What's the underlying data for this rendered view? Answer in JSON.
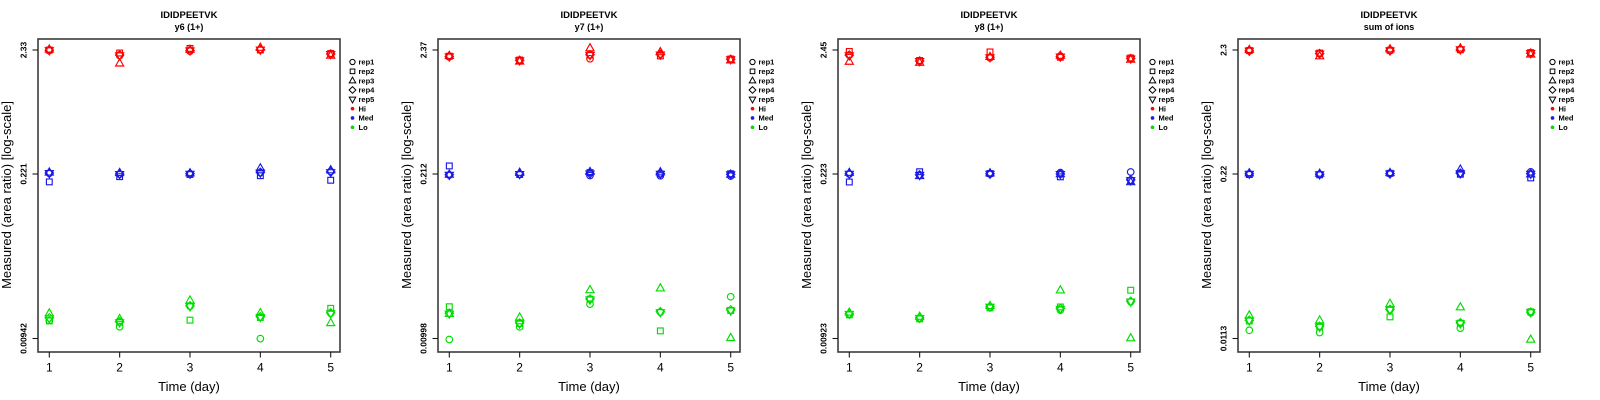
{
  "figure": {
    "ylabel": "Measured (area ratio) [log-scale]",
    "xlabel": "Time (day)",
    "x_tick_labels": [
      "1",
      "2",
      "3",
      "4",
      "5"
    ],
    "legend": {
      "reps": [
        {
          "label": "rep1",
          "marker": "circle"
        },
        {
          "label": "rep2",
          "marker": "square"
        },
        {
          "label": "rep3",
          "marker": "triangle-up"
        },
        {
          "label": "rep4",
          "marker": "diamond"
        },
        {
          "label": "rep5",
          "marker": "triangle-down"
        }
      ],
      "levels": [
        {
          "label": "Hi",
          "color": "#ff0000"
        },
        {
          "label": "Med",
          "color": "#1a1ae6"
        },
        {
          "label": "Lo",
          "color": "#00dd00"
        }
      ]
    }
  },
  "chart_data": [
    {
      "type": "scatter",
      "title": "IDIDPEETVK",
      "subtitle": "y6 (1+)",
      "xlabel": "Time (day)",
      "ylabel": "Measured (area ratio) [log-scale]",
      "y_scale": "log",
      "x": [
        1,
        2,
        3,
        4,
        5
      ],
      "y_ticks": [
        2.33,
        0.221,
        0.00942
      ],
      "y_tick_labels": [
        "2.33",
        "0.221",
        "0.00942"
      ],
      "rep_order": [
        "rep1",
        "rep2",
        "rep3",
        "rep4",
        "rep5"
      ],
      "series": [
        {
          "name": "Hi",
          "days": [
            [
              2.31,
              2.33,
              2.36,
              2.32,
              2.31
            ],
            [
              2.1,
              2.2,
              1.81,
              2.12,
              2.1
            ],
            [
              2.28,
              2.4,
              2.35,
              2.31,
              2.3
            ],
            [
              2.36,
              2.33,
              2.44,
              2.35,
              2.34
            ],
            [
              2.15,
              2.18,
              2.1,
              2.16,
              2.15
            ]
          ]
        },
        {
          "name": "Med",
          "days": [
            [
              0.224,
              0.19,
              0.228,
              0.225,
              0.224
            ],
            [
              0.22,
              0.21,
              0.226,
              0.221,
              0.22
            ],
            [
              0.222,
              0.219,
              0.225,
              0.222,
              0.221
            ],
            [
              0.227,
              0.214,
              0.247,
              0.228,
              0.226
            ],
            [
              0.232,
              0.196,
              0.238,
              0.23,
              0.228
            ]
          ]
        },
        {
          "name": "Lo",
          "days": [
            [
              0.0133,
              0.0132,
              0.0153,
              0.014,
              0.0138
            ],
            [
              0.0118,
              0.0129,
              0.0137,
              0.013,
              0.0128
            ],
            [
              0.0175,
              0.0134,
              0.0196,
              0.0176,
              0.0174
            ],
            [
              0.0094,
              0.0141,
              0.0154,
              0.0143,
              0.0142
            ],
            [
              0.0153,
              0.0168,
              0.0127,
              0.0154,
              0.0152
            ]
          ]
        }
      ]
    },
    {
      "type": "scatter",
      "title": "IDIDPEETVK",
      "subtitle": "y7 (1+)",
      "xlabel": "Time (day)",
      "ylabel": "Measured (area ratio) [log-scale]",
      "y_scale": "log",
      "x": [
        1,
        2,
        3,
        4,
        5
      ],
      "y_ticks": [
        2.37,
        0.212,
        0.00998
      ],
      "y_tick_labels": [
        "2.37",
        "0.212",
        "0.00998"
      ],
      "rep_order": [
        "rep1",
        "rep2",
        "rep3",
        "rep4",
        "rep5"
      ],
      "series": [
        {
          "name": "Hi",
          "days": [
            [
              2.08,
              2.1,
              2.12,
              2.09,
              2.08
            ],
            [
              1.93,
              1.95,
              1.9,
              1.94,
              1.93
            ],
            [
              2.0,
              2.15,
              2.46,
              2.16,
              2.14
            ],
            [
              2.19,
              2.11,
              2.28,
              2.18,
              2.16
            ],
            [
              1.97,
              1.99,
              1.94,
              1.98,
              1.97
            ]
          ]
        },
        {
          "name": "Med",
          "days": [
            [
              0.208,
              0.248,
              0.21,
              0.209,
              0.208
            ],
            [
              0.211,
              0.21,
              0.218,
              0.212,
              0.211
            ],
            [
              0.206,
              0.218,
              0.221,
              0.214,
              0.213
            ],
            [
              0.205,
              0.212,
              0.22,
              0.213,
              0.212
            ],
            [
              0.204,
              0.213,
              0.21,
              0.211,
              0.21
            ]
          ]
        },
        {
          "name": "Lo",
          "days": [
            [
              0.0098,
              0.018,
              0.0158,
              0.016,
              0.0158
            ],
            [
              0.0124,
              0.0132,
              0.0148,
              0.0133,
              0.0131
            ],
            [
              0.0189,
              0.0207,
              0.0246,
              0.0208,
              0.0205
            ],
            [
              0.0163,
              0.0115,
              0.0254,
              0.0164,
              0.0162
            ],
            [
              0.0217,
              0.0168,
              0.0101,
              0.017,
              0.0167
            ]
          ]
        }
      ]
    },
    {
      "type": "scatter",
      "title": "IDIDPEETVK",
      "subtitle": "y8 (1+)",
      "xlabel": "Time (day)",
      "ylabel": "Measured (area ratio) [log-scale]",
      "y_scale": "log",
      "x": [
        1,
        2,
        3,
        4,
        5
      ],
      "y_ticks": [
        2.45,
        0.223,
        0.00923
      ],
      "y_tick_labels": [
        "2.45",
        "0.223",
        "0.00923"
      ],
      "rep_order": [
        "rep1",
        "rep2",
        "rep3",
        "rep4",
        "rep5"
      ],
      "series": [
        {
          "name": "Hi",
          "days": [
            [
              2.22,
              2.38,
              1.96,
              2.22,
              2.2
            ],
            [
              1.97,
              2.0,
              1.92,
              1.98,
              1.97
            ],
            [
              2.11,
              2.36,
              2.15,
              2.13,
              2.12
            ],
            [
              2.18,
              2.13,
              2.2,
              2.16,
              2.15
            ],
            [
              2.08,
              2.1,
              2.04,
              2.08,
              2.07
            ]
          ]
        },
        {
          "name": "Med",
          "days": [
            [
              0.223,
              0.191,
              0.229,
              0.224,
              0.223
            ],
            [
              0.218,
              0.233,
              0.215,
              0.219,
              0.218
            ],
            [
              0.223,
              0.225,
              0.227,
              0.224,
              0.223
            ],
            [
              0.229,
              0.211,
              0.223,
              0.223,
              0.222
            ],
            [
              0.232,
              0.196,
              0.191,
              0.199,
              0.197
            ]
          ]
        },
        {
          "name": "Lo",
          "days": [
            [
              0.0147,
              0.0146,
              0.0153,
              0.0149,
              0.0148
            ],
            [
              0.0136,
              0.0135,
              0.0141,
              0.0138,
              0.0137
            ],
            [
              0.017,
              0.0167,
              0.0174,
              0.0171,
              0.017
            ],
            [
              0.016,
              0.017,
              0.0235,
              0.0165,
              0.0163
            ],
            [
              0.0188,
              0.0235,
              0.0093,
              0.019,
              0.0188
            ]
          ]
        }
      ]
    },
    {
      "type": "scatter",
      "title": "IDIDPEETVK",
      "subtitle": "sum of ions",
      "xlabel": "Time (day)",
      "ylabel": "Measured (area ratio) [log-scale]",
      "y_scale": "log",
      "x": [
        1,
        2,
        3,
        4,
        5
      ],
      "y_ticks": [
        2.3,
        0.22,
        0.0113
      ],
      "y_tick_labels": [
        "2.3",
        "0.22",
        "0.0113"
      ],
      "rep_order": [
        "rep1",
        "rep2",
        "rep3",
        "rep4",
        "rep5"
      ],
      "series": [
        {
          "name": "Hi",
          "days": [
            [
              2.26,
              2.28,
              2.31,
              2.27,
              2.26
            ],
            [
              2.14,
              2.17,
              2.05,
              2.15,
              2.14
            ],
            [
              2.27,
              2.29,
              2.34,
              2.28,
              2.27
            ],
            [
              2.33,
              2.31,
              2.38,
              2.33,
              2.32
            ],
            [
              2.17,
              2.19,
              2.12,
              2.17,
              2.16
            ]
          ]
        },
        {
          "name": "Med",
          "days": [
            [
              0.22,
              0.218,
              0.224,
              0.221,
              0.22
            ],
            [
              0.219,
              0.217,
              0.222,
              0.219,
              0.218
            ],
            [
              0.221,
              0.223,
              0.225,
              0.222,
              0.221
            ],
            [
              0.223,
              0.219,
              0.24,
              0.223,
              0.222
            ],
            [
              0.229,
              0.205,
              0.219,
              0.221,
              0.22
            ]
          ]
        },
        {
          "name": "Lo",
          "days": [
            [
              0.0131,
              0.0155,
              0.0172,
              0.0157,
              0.0156
            ],
            [
              0.0126,
              0.014,
              0.0157,
              0.0141,
              0.0139
            ],
            [
              0.019,
              0.0167,
              0.0212,
              0.0191,
              0.0189
            ],
            [
              0.0136,
              0.0149,
              0.0199,
              0.015,
              0.0148
            ],
            [
              0.018,
              0.0183,
              0.0111,
              0.0182,
              0.0181
            ]
          ]
        }
      ]
    }
  ]
}
